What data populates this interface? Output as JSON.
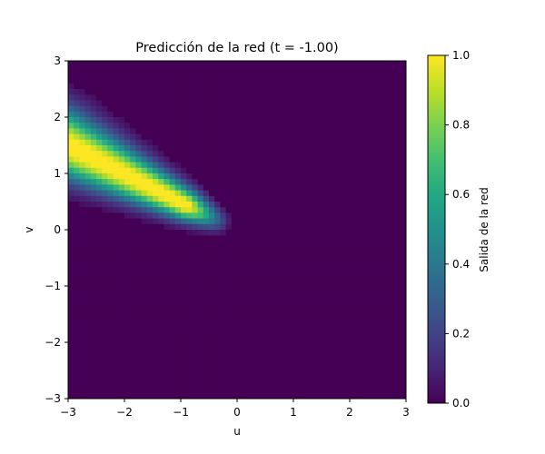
{
  "chart_data": {
    "type": "heatmap",
    "title": "Predicción de la red (t = -1.00)",
    "xlabel": "u",
    "ylabel": "v",
    "xlim": [
      -3,
      3
    ],
    "ylim": [
      -3,
      3
    ],
    "x_ticks": [
      "−3",
      "−2",
      "−1",
      "0",
      "1",
      "2",
      "3"
    ],
    "y_ticks": [
      "−3",
      "−2",
      "−1",
      "0",
      "1",
      "2",
      "3"
    ],
    "grid": false,
    "colormap": "viridis",
    "grid_resolution": [
      60,
      60
    ],
    "colorbar": {
      "label": "Salida de la red",
      "range": [
        0,
        1
      ],
      "ticks": [
        "0.0",
        "0.2",
        "0.4",
        "0.6",
        "0.8",
        "1.0"
      ]
    },
    "blob": {
      "description": "high-output elongated region along line from (u=-3,v=1.5) to (u=-0.3,v=0.2)",
      "start": [
        -3.1,
        1.55
      ],
      "end": [
        -0.25,
        0.1
      ],
      "peak_value": 1.0
    }
  }
}
